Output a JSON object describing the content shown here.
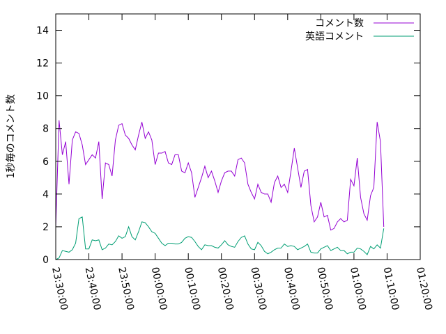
{
  "chart_data": {
    "type": "line",
    "title": "",
    "xlabel": "",
    "ylabel": "1秒毎のコメント数",
    "ylim": [
      0,
      15
    ],
    "yticks": [
      0,
      2,
      4,
      6,
      8,
      10,
      12,
      14
    ],
    "xlim": [
      "23:30:00",
      "01:20:00"
    ],
    "xticks": [
      "23:30:00",
      "23:40:00",
      "23:50:00",
      "00:00:00",
      "00:10:00",
      "00:20:00",
      "00:30:00",
      "00:40:00",
      "00:50:00",
      "01:00:00",
      "01:10:00",
      "01:20:00"
    ],
    "x_step_seconds": 60,
    "legend_position": "top-right",
    "grid": false,
    "series": [
      {
        "name": "コメント数",
        "color": "#9400d3",
        "values": [
          2.0,
          8.5,
          6.4,
          7.2,
          4.6,
          7.3,
          7.8,
          7.7,
          7.0,
          5.8,
          6.1,
          6.4,
          6.2,
          7.2,
          3.7,
          5.9,
          5.8,
          5.1,
          7.3,
          8.2,
          8.3,
          7.6,
          7.4,
          7.0,
          6.7,
          7.6,
          8.4,
          7.4,
          7.8,
          7.3,
          5.8,
          6.5,
          6.5,
          6.6,
          5.9,
          5.8,
          6.4,
          6.4,
          5.4,
          5.3,
          5.9,
          5.3,
          3.8,
          4.4,
          5.0,
          5.7,
          5.0,
          5.4,
          4.8,
          4.1,
          4.8,
          5.3,
          5.4,
          5.4,
          5.1,
          6.1,
          6.2,
          5.9,
          4.6,
          4.1,
          3.7,
          4.6,
          4.1,
          4.0,
          4.0,
          3.5,
          4.7,
          5.1,
          4.4,
          4.6,
          4.1,
          5.4,
          6.8,
          5.6,
          4.4,
          5.4,
          5.5,
          3.3,
          2.3,
          2.6,
          3.5,
          2.6,
          2.7,
          1.8,
          1.9,
          2.3,
          2.5,
          2.3,
          2.4,
          4.9,
          4.5,
          6.2,
          3.8,
          2.8,
          2.4,
          3.9,
          4.4,
          8.4,
          7.2,
          2.0
        ]
      },
      {
        "name": "英語コメント",
        "color": "#009e73",
        "values": [
          0.0,
          0.1,
          0.55,
          0.5,
          0.45,
          0.6,
          1.0,
          2.5,
          2.6,
          0.65,
          0.65,
          1.2,
          1.15,
          1.2,
          0.6,
          0.7,
          0.95,
          0.9,
          1.1,
          1.45,
          1.3,
          1.4,
          2.0,
          1.4,
          1.2,
          1.7,
          2.3,
          2.25,
          2.0,
          1.7,
          1.6,
          1.3,
          1.0,
          0.85,
          1.0,
          1.0,
          0.95,
          0.95,
          1.05,
          1.3,
          1.4,
          1.35,
          1.1,
          0.8,
          0.6,
          0.9,
          0.85,
          0.85,
          0.75,
          0.7,
          0.9,
          1.15,
          0.9,
          0.8,
          0.75,
          1.1,
          1.35,
          1.45,
          0.95,
          0.65,
          0.6,
          1.05,
          0.85,
          0.5,
          0.35,
          0.45,
          0.6,
          0.7,
          0.7,
          0.95,
          0.8,
          0.85,
          0.8,
          0.6,
          0.7,
          0.8,
          0.95,
          0.45,
          0.4,
          0.4,
          0.65,
          0.75,
          0.85,
          0.55,
          0.65,
          0.75,
          0.55,
          0.55,
          0.35,
          0.45,
          0.45,
          0.7,
          0.65,
          0.5,
          0.3,
          0.8,
          0.65,
          0.9,
          0.7,
          1.9
        ]
      }
    ]
  }
}
